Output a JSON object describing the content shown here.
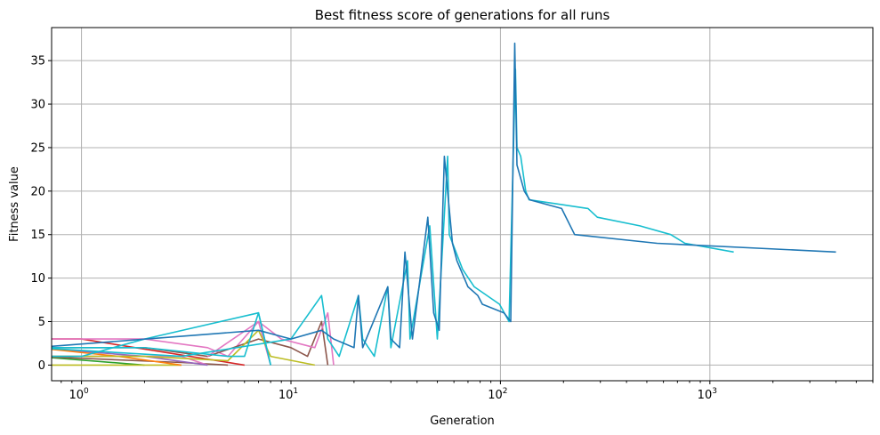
{
  "chart_data": {
    "type": "line",
    "title": "Best fitness score of generations for all runs",
    "xlabel": "Generation",
    "ylabel": "Fitness value",
    "xscale": "log",
    "xlim": [
      0.72,
      6000
    ],
    "ylim": [
      -1.8,
      38.8
    ],
    "xticks": [
      {
        "value": 1,
        "label": "10",
        "exp": "0"
      },
      {
        "value": 10,
        "label": "10",
        "exp": "1"
      },
      {
        "value": 100,
        "label": "10",
        "exp": "2"
      },
      {
        "value": 1000,
        "label": "10",
        "exp": "3"
      }
    ],
    "yticks": [
      0,
      5,
      10,
      15,
      20,
      25,
      30,
      35
    ],
    "grid": true,
    "legend": "none",
    "series": [
      {
        "color": "#2ca02c",
        "points": [
          [
            0.6,
            1
          ],
          [
            2,
            0
          ]
        ]
      },
      {
        "color": "#bcbd22",
        "points": [
          [
            0.6,
            0
          ],
          [
            3,
            0
          ]
        ]
      },
      {
        "color": "#8c564b",
        "points": [
          [
            0.6,
            1
          ],
          [
            3,
            0.3
          ],
          [
            5,
            0
          ]
        ]
      },
      {
        "color": "#e377c2",
        "points": [
          [
            0.6,
            1
          ],
          [
            3,
            1
          ],
          [
            4,
            0
          ]
        ]
      },
      {
        "color": "#d62728",
        "points": [
          [
            0.6,
            3
          ],
          [
            1,
            3
          ],
          [
            6,
            0
          ]
        ]
      },
      {
        "color": "#9467bd",
        "points": [
          [
            0.6,
            2
          ],
          [
            2,
            1
          ],
          [
            4,
            0
          ]
        ]
      },
      {
        "color": "#ff7f0e",
        "points": [
          [
            0.6,
            2
          ],
          [
            1.5,
            1
          ],
          [
            3,
            0
          ]
        ]
      },
      {
        "color": "#e377c2",
        "points": [
          [
            0.6,
            3
          ],
          [
            2,
            3
          ],
          [
            4,
            2
          ],
          [
            5,
            1
          ],
          [
            7,
            5
          ],
          [
            8,
            0
          ]
        ]
      },
      {
        "color": "#8c564b",
        "points": [
          [
            0.6,
            2
          ],
          [
            2,
            2
          ],
          [
            4,
            1
          ],
          [
            7,
            3
          ],
          [
            10,
            2
          ],
          [
            12,
            1
          ],
          [
            14,
            5
          ],
          [
            15,
            0
          ]
        ]
      },
      {
        "color": "#bcbd22",
        "points": [
          [
            0.6,
            1
          ],
          [
            2,
            1
          ],
          [
            5,
            0.5
          ],
          [
            7,
            4
          ],
          [
            8,
            1
          ],
          [
            13,
            0
          ]
        ]
      },
      {
        "color": "#e377c2",
        "points": [
          [
            4,
            1
          ],
          [
            7,
            5
          ],
          [
            9,
            3
          ],
          [
            13,
            2
          ],
          [
            15,
            6
          ],
          [
            16,
            0
          ]
        ]
      },
      {
        "color": "#17becf",
        "points": [
          [
            0.6,
            1
          ],
          [
            1,
            1
          ],
          [
            2,
            3
          ],
          [
            7,
            6
          ],
          [
            8,
            0
          ]
        ]
      },
      {
        "color": "#17becf",
        "points": [
          [
            0.6,
            2
          ],
          [
            2,
            2
          ],
          [
            5,
            1
          ],
          [
            6,
            1
          ],
          [
            7,
            6
          ],
          [
            8,
            0
          ]
        ]
      },
      {
        "color": "#17becf",
        "points": [
          [
            0.6,
            2
          ],
          [
            3,
            1
          ],
          [
            10,
            3
          ],
          [
            14,
            8
          ],
          [
            15,
            3
          ],
          [
            17,
            1
          ],
          [
            21,
            8
          ],
          [
            22,
            3
          ],
          [
            25,
            1
          ],
          [
            29,
            9
          ],
          [
            30,
            2
          ],
          [
            36,
            12
          ],
          [
            37,
            3
          ],
          [
            46,
            16
          ],
          [
            50,
            3
          ],
          [
            56,
            24
          ],
          [
            57,
            15
          ],
          [
            66,
            11
          ],
          [
            75,
            9
          ],
          [
            99,
            7
          ],
          [
            110,
            5
          ],
          [
            118,
            34
          ],
          [
            120,
            25
          ],
          [
            125,
            24
          ],
          [
            132,
            20
          ],
          [
            137,
            19
          ],
          [
            262,
            18
          ],
          [
            290,
            17
          ],
          [
            463,
            16
          ],
          [
            650,
            15
          ],
          [
            760,
            14
          ],
          [
            1300,
            13
          ]
        ]
      },
      {
        "color": "#1f77b4",
        "points": [
          [
            0.6,
            2
          ],
          [
            7,
            4
          ],
          [
            10,
            3
          ],
          [
            14,
            4
          ],
          [
            16,
            3
          ],
          [
            20,
            2
          ],
          [
            21,
            8
          ],
          [
            22,
            2
          ],
          [
            29,
            9
          ],
          [
            30,
            3
          ],
          [
            33,
            2
          ],
          [
            35,
            13
          ],
          [
            38,
            3
          ],
          [
            45,
            17
          ],
          [
            48,
            6
          ],
          [
            51,
            4
          ],
          [
            54,
            24
          ],
          [
            59,
            14
          ],
          [
            62,
            12
          ],
          [
            70,
            9
          ],
          [
            78,
            8
          ],
          [
            82,
            7
          ],
          [
            104,
            6
          ],
          [
            112,
            5
          ],
          [
            117,
            37
          ],
          [
            120,
            23
          ],
          [
            130,
            20
          ],
          [
            138,
            19
          ],
          [
            196,
            18
          ],
          [
            226,
            15
          ],
          [
            560,
            14
          ],
          [
            4000,
            13
          ]
        ]
      }
    ]
  }
}
